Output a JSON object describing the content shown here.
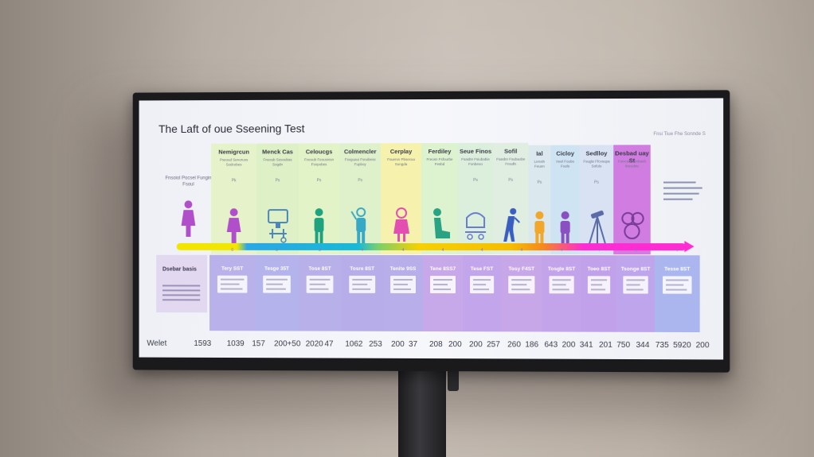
{
  "screen": {
    "title": "The Laft of oue Sseening Test",
    "top_right": "Fnsi Tiue Fhe Sonnde S",
    "intro": "Fnsoiol Pocsel Fungin Fsoul",
    "first_box_title": "Dsebar basis"
  },
  "columns": [
    {
      "name": "Nemigrcun",
      "desc": "Pseoud Senoruos Sodcobes",
      "num": "Pk",
      "color": "#e6f2c9",
      "fig": "woman",
      "figColor": "#b04fc9"
    },
    {
      "name": "Menck Cas",
      "desc": "Fneoub Sosoubas Sogdn",
      "num": "Ps",
      "color": "#def0c6",
      "fig": "computer",
      "figColor": "#4a86b8"
    },
    {
      "name": "Celoucgs",
      "desc": "Fneoub Feousnisn Fsnpobes",
      "num": "Ps",
      "color": "#e3f3c8",
      "fig": "person",
      "figColor": "#1fa37e"
    },
    {
      "name": "Colmencler",
      "desc": "Fsxguaui Fsruibess Fupboy",
      "num": "Ps",
      "color": "#dff1cb",
      "fig": "person-arm",
      "figColor": "#38a9c4"
    },
    {
      "name": "Cerplay",
      "desc": "Fsuerxn Pbsecuu Sungda",
      "num": "",
      "color": "#f6f2ad",
      "fig": "child",
      "figColor": "#e24fb0"
    },
    {
      "name": "Ferdiley",
      "desc": "Freosn Fsfourbe Fesbd",
      "num": "",
      "color": "#ddf2cf",
      "fig": "kneel",
      "figColor": "#2aa384"
    },
    {
      "name": "Seue Finos",
      "desc": "Fsasbn Fsiubabie Fonbeoo",
      "num": "Ps",
      "color": "#dcefdd",
      "fig": "stroller",
      "figColor": "#6a7bd0"
    },
    {
      "name": "Sofil",
      "desc": "Fsasbn Fsubaobe Fnsofn",
      "num": "Ps",
      "color": "#e0eee1",
      "fig": "bent",
      "figColor": "#3a5ec0"
    },
    {
      "name": "Ial",
      "desc": "Lenaln Feuen",
      "num": "Ps",
      "color": "#dbe9ee",
      "fig": "kid",
      "figColor": "#f0a72a"
    },
    {
      "name": "Cicloy",
      "desc": "Ireel Foubs Fsofe",
      "num": "",
      "color": "#cfe4f3",
      "fig": "kid2",
      "figColor": "#8a4fc0"
    },
    {
      "name": "Sedlloy",
      "desc": "Fsugle Ffcvsupa Snfolo",
      "num": "Ps",
      "color": "#d8e2f3",
      "fig": "tripod",
      "figColor": "#5a6ba8"
    },
    {
      "name": "Desbad uay St",
      "desc": "Fsiocan Sonbaeb Ibescbie",
      "num": "",
      "color": "#d07ce0",
      "fig": "circles",
      "figColor": "#7a3c9a"
    }
  ],
  "bottom": [
    {
      "tick": "0",
      "title": "Tery SST",
      "color": "#b9b1e9"
    },
    {
      "tick": "3",
      "title": "Tesge 35T",
      "color": "#b5b3ec"
    },
    {
      "tick": "3",
      "title": "Tose 8ST",
      "color": "#b8b0e9"
    },
    {
      "tick": "4",
      "title": "Tosre 8ST",
      "color": "#b7aee9"
    },
    {
      "tick": "4",
      "title": "Tenite 9SS",
      "color": "#b7aeea"
    },
    {
      "tick": "4",
      "title": "Tene 8SS7",
      "color": "#c7a8e9"
    },
    {
      "tick": "4",
      "title": "Tese FST",
      "color": "#c2a5ea"
    },
    {
      "tick": "4",
      "title": "Tosy F4ST",
      "color": "#c8a7e9"
    },
    {
      "tick": "4",
      "title": "Tosgle 8ST",
      "color": "#c3a3ea"
    },
    {
      "tick": "4",
      "title": "Toeo 8ST",
      "color": "#c1a2ea"
    },
    {
      "tick": "4",
      "title": "Tsonge 8ST",
      "color": "#bfa5ec"
    },
    {
      "tick": "0",
      "title": "Tesse 8ST",
      "color": "#abb6ef"
    }
  ],
  "scale": [
    "Welet",
    "1593",
    "1039",
    "157",
    "200+50",
    "2020",
    "47",
    "1062",
    "253",
    "200",
    "37",
    "208",
    "200",
    "200",
    "257",
    "260",
    "186",
    "643",
    "200",
    "341",
    "201",
    "750",
    "344",
    "735",
    "5920",
    "200"
  ]
}
